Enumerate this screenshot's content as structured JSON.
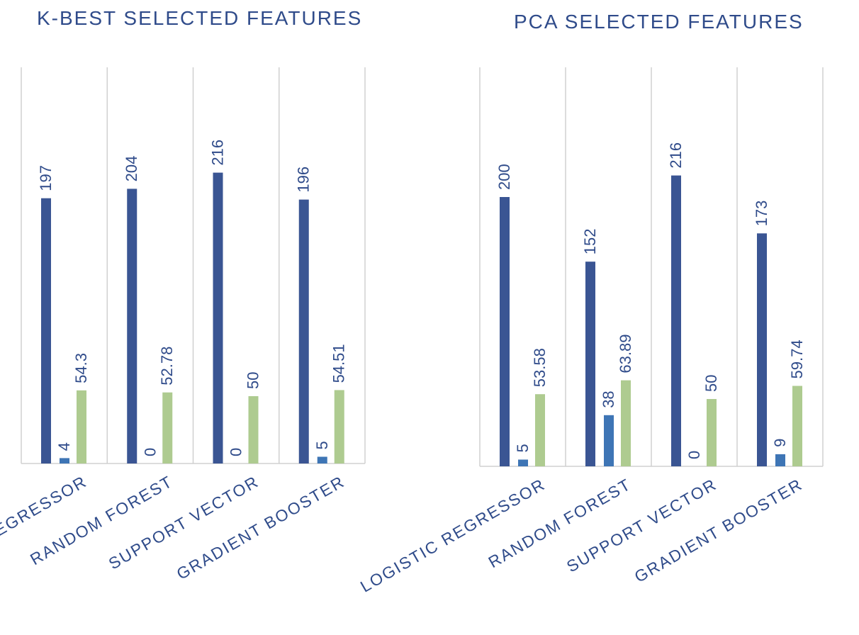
{
  "colors": {
    "series_a": "#3a5593",
    "series_b": "#3e75b5",
    "series_c": "#aecb90",
    "text": "#2f4b8a",
    "axis": "#d0d0d0"
  },
  "chart_data": [
    {
      "type": "bar",
      "title": "K-BEST SELECTED FEATURES",
      "categories": [
        "LOGISTIC REGRESSOR",
        "RANDOM FOREST",
        "SUPPORT VECTOR",
        "GRADIENT BOOSTER"
      ],
      "series": [
        {
          "values": [
            197,
            204,
            216,
            196
          ]
        },
        {
          "values": [
            4,
            0,
            0,
            5
          ]
        },
        {
          "values": [
            54.3,
            52.78,
            50,
            54.51
          ]
        }
      ],
      "data_labels": [
        [
          "197",
          "204",
          "216",
          "196"
        ],
        [
          "4",
          "0",
          "0",
          "5"
        ],
        [
          "54.3",
          "52.78",
          "50",
          "54.51"
        ]
      ],
      "ylim": [
        0,
        240
      ],
      "grid": false,
      "category_separators": true,
      "legend": "none",
      "label_orientation": "vertical",
      "category_label_rotation": -30
    },
    {
      "type": "bar",
      "title": "PCA SELECTED FEATURES",
      "categories": [
        "LOGISTIC REGRESSOR",
        "RANDOM FOREST",
        "SUPPORT VECTOR",
        "GRADIENT BOOSTER"
      ],
      "series": [
        {
          "values": [
            200,
            152,
            216,
            173
          ]
        },
        {
          "values": [
            5,
            38,
            0,
            9
          ]
        },
        {
          "values": [
            53.58,
            63.89,
            50,
            59.74
          ]
        }
      ],
      "data_labels": [
        [
          "200",
          "152",
          "216",
          "173"
        ],
        [
          "5",
          "38",
          "0",
          "9"
        ],
        [
          "53.58",
          "63.89",
          "50",
          "59.74"
        ]
      ],
      "ylim": [
        0,
        240
      ],
      "grid": false,
      "category_separators": true,
      "legend": "none",
      "label_orientation": "vertical",
      "category_label_rotation": -30
    }
  ]
}
